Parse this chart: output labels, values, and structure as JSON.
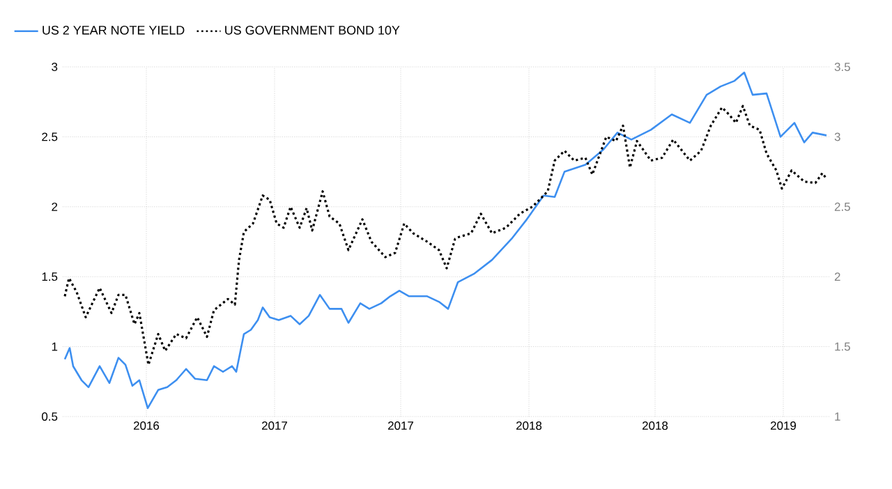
{
  "chart_data": {
    "type": "line",
    "xlim": [
      "2016-03-03",
      "2019-03-08"
    ],
    "xticks": [
      {
        "value": "2016-07-01",
        "label": "2016"
      },
      {
        "value": "2017-01-01",
        "label": "2017"
      },
      {
        "value": "2017-07-01",
        "label": "2017"
      },
      {
        "value": "2018-01-01",
        "label": "2018"
      },
      {
        "value": "2018-07-01",
        "label": "2018"
      },
      {
        "value": "2019-01-01",
        "label": "2019"
      }
    ],
    "ylim": [
      0.5,
      3
    ],
    "yticks": [
      0.5,
      1,
      1.5,
      2,
      2.5,
      3
    ],
    "y2lim": [
      1,
      3.5
    ],
    "y2ticks": [
      1,
      1.5,
      2,
      2.5,
      3,
      3.5
    ],
    "grid": true,
    "legend": "top left",
    "series": [
      {
        "name": "US 2 YEAR NOTE YIELD",
        "color": "#3d8ff0",
        "line_style": "solid",
        "x": [
          "2016-03-06",
          "2016-03-13",
          "2016-03-18",
          "2016-03-30",
          "2016-04-09",
          "2016-04-25",
          "2016-05-09",
          "2016-05-22",
          "2016-06-01",
          "2016-06-11",
          "2016-06-21",
          "2016-07-03",
          "2016-07-18",
          "2016-07-31",
          "2016-08-13",
          "2016-08-27",
          "2016-09-09",
          "2016-09-26",
          "2016-10-06",
          "2016-10-19",
          "2016-11-01",
          "2016-11-07",
          "2016-11-18",
          "2016-11-28",
          "2016-12-08",
          "2016-12-15",
          "2016-12-25",
          "2017-01-07",
          "2017-01-24",
          "2017-02-06",
          "2017-02-19",
          "2017-03-07",
          "2017-03-21",
          "2017-04-07",
          "2017-04-17",
          "2017-05-04",
          "2017-05-17",
          "2017-06-03",
          "2017-06-16",
          "2017-06-29",
          "2017-07-13",
          "2017-08-08",
          "2017-08-25",
          "2017-09-07",
          "2017-09-21",
          "2017-10-14",
          "2017-11-09",
          "2017-12-07",
          "2017-12-29",
          "2018-01-22",
          "2018-02-07",
          "2018-02-21",
          "2018-03-23",
          "2018-04-18",
          "2018-05-08",
          "2018-05-28",
          "2018-06-25",
          "2018-07-25",
          "2018-08-20",
          "2018-09-13",
          "2018-10-03",
          "2018-10-23",
          "2018-11-06",
          "2018-11-18",
          "2018-12-08",
          "2018-12-28",
          "2019-01-17",
          "2019-01-31",
          "2019-02-12",
          "2019-03-04"
        ],
        "values": [
          0.91,
          0.99,
          0.86,
          0.76,
          0.71,
          0.86,
          0.74,
          0.92,
          0.87,
          0.72,
          0.76,
          0.56,
          0.69,
          0.71,
          0.76,
          0.84,
          0.77,
          0.76,
          0.86,
          0.82,
          0.86,
          0.82,
          1.09,
          1.12,
          1.19,
          1.28,
          1.21,
          1.19,
          1.22,
          1.16,
          1.22,
          1.37,
          1.27,
          1.27,
          1.17,
          1.31,
          1.27,
          1.31,
          1.36,
          1.4,
          1.36,
          1.36,
          1.32,
          1.27,
          1.46,
          1.52,
          1.62,
          1.77,
          1.91,
          2.08,
          2.07,
          2.25,
          2.3,
          2.41,
          2.53,
          2.48,
          2.55,
          2.66,
          2.6,
          2.8,
          2.86,
          2.9,
          2.96,
          2.8,
          2.81,
          2.5,
          2.6,
          2.46,
          2.53,
          2.51
        ]
      },
      {
        "name": "US GOVERNMENT BOND 10Y",
        "color": "#000000",
        "line_style": "dotted",
        "axis": "y2",
        "x": [
          "2016-03-06",
          "2016-03-12",
          "2016-03-23",
          "2016-04-05",
          "2016-04-25",
          "2016-05-12",
          "2016-05-22",
          "2016-06-01",
          "2016-06-14",
          "2016-06-21",
          "2016-07-04",
          "2016-07-18",
          "2016-07-28",
          "2016-08-13",
          "2016-08-27",
          "2016-09-12",
          "2016-09-26",
          "2016-10-06",
          "2016-10-26",
          "2016-11-05",
          "2016-11-11",
          "2016-11-18",
          "2016-12-01",
          "2016-12-15",
          "2016-12-25",
          "2017-01-04",
          "2017-01-14",
          "2017-01-24",
          "2017-02-06",
          "2017-02-16",
          "2017-02-24",
          "2017-03-11",
          "2017-03-21",
          "2017-04-04",
          "2017-04-17",
          "2017-05-07",
          "2017-05-20",
          "2017-06-09",
          "2017-06-23",
          "2017-07-06",
          "2017-07-19",
          "2017-08-08",
          "2017-08-25",
          "2017-09-05",
          "2017-09-17",
          "2017-09-20",
          "2017-10-10",
          "2017-10-24",
          "2017-11-09",
          "2017-11-29",
          "2017-12-19",
          "2018-01-06",
          "2018-01-28",
          "2018-02-07",
          "2018-02-21",
          "2018-03-07",
          "2018-03-23",
          "2018-04-02",
          "2018-04-22",
          "2018-05-06",
          "2018-05-16",
          "2018-05-26",
          "2018-06-05",
          "2018-06-25",
          "2018-07-11",
          "2018-07-27",
          "2018-08-20",
          "2018-09-05",
          "2018-09-19",
          "2018-10-05",
          "2018-10-15",
          "2018-10-25",
          "2018-11-04",
          "2018-11-14",
          "2018-11-28",
          "2018-12-08",
          "2018-12-22",
          "2018-12-30",
          "2019-01-13",
          "2019-01-31",
          "2019-02-16",
          "2019-02-26",
          "2019-03-04"
        ],
        "values": [
          1.86,
          1.99,
          1.89,
          1.71,
          1.92,
          1.74,
          1.87,
          1.87,
          1.66,
          1.74,
          1.37,
          1.59,
          1.47,
          1.59,
          1.56,
          1.71,
          1.57,
          1.76,
          1.84,
          1.8,
          2.12,
          2.32,
          2.38,
          2.58,
          2.55,
          2.38,
          2.35,
          2.5,
          2.35,
          2.49,
          2.33,
          2.61,
          2.43,
          2.38,
          2.19,
          2.41,
          2.25,
          2.14,
          2.17,
          2.38,
          2.31,
          2.25,
          2.19,
          2.06,
          2.27,
          2.28,
          2.31,
          2.45,
          2.31,
          2.35,
          2.45,
          2.5,
          2.61,
          2.83,
          2.9,
          2.83,
          2.85,
          2.73,
          3.0,
          2.97,
          3.08,
          2.78,
          2.97,
          2.83,
          2.85,
          2.98,
          2.83,
          2.9,
          3.08,
          3.21,
          3.16,
          3.1,
          3.22,
          3.08,
          3.05,
          2.88,
          2.76,
          2.63,
          2.76,
          2.68,
          2.67,
          2.74,
          2.7
        ]
      }
    ]
  }
}
